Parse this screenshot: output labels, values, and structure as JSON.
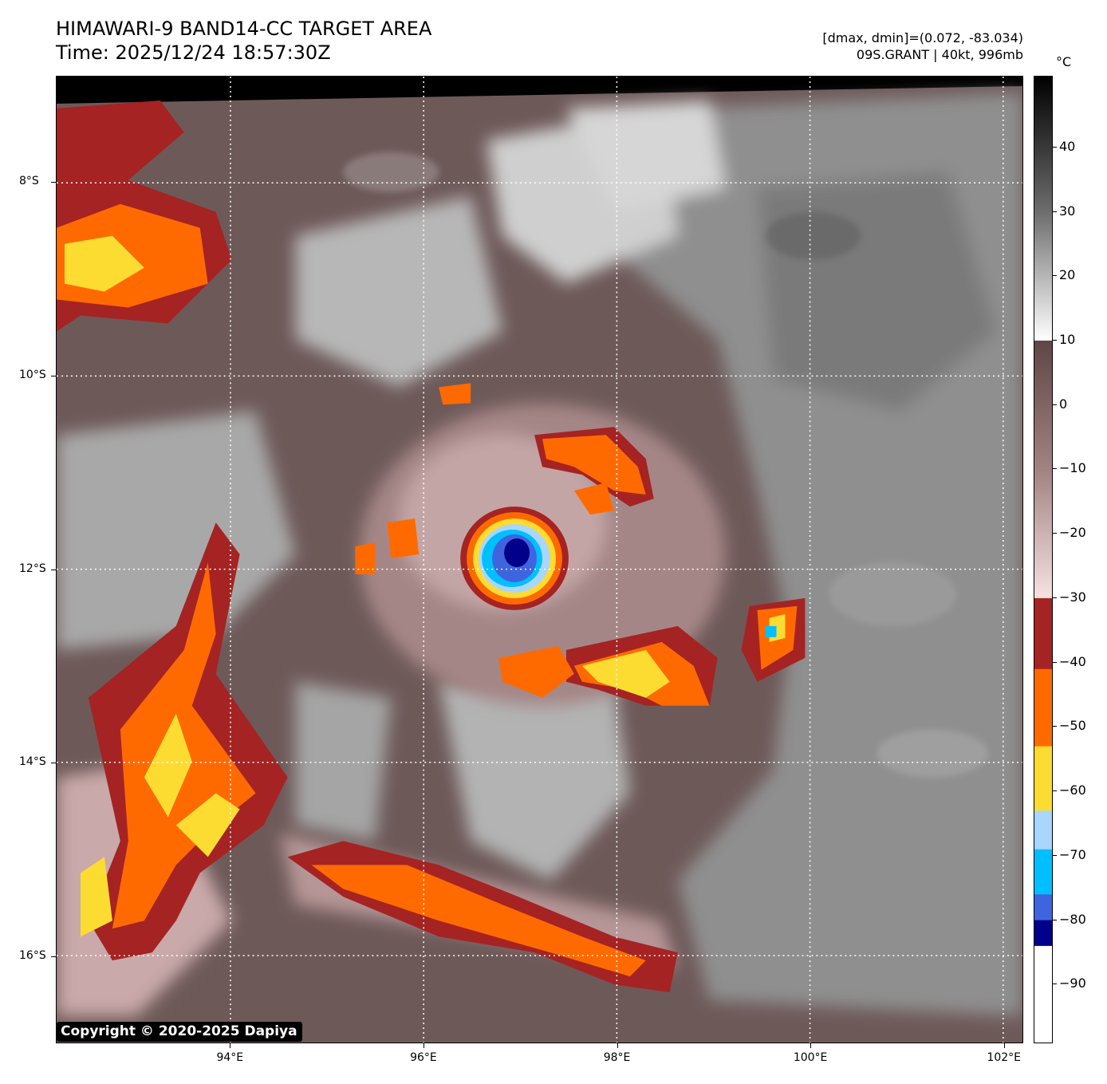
{
  "header": {
    "title_line1": "HIMAWARI-9 BAND14-CC TARGET AREA",
    "title_line2": "Time: 2025/12/24 18:57:30Z",
    "stats_line": "[dmax, dmin]=(0.072, -83.034)",
    "storm_line": "09S.GRANT | 40kt, 996mb"
  },
  "map": {
    "lat_labels": [
      "8°S",
      "10°S",
      "12°S",
      "14°S",
      "16°S"
    ],
    "lon_labels": [
      "94°E",
      "96°E",
      "98°E",
      "100°E",
      "102°E"
    ],
    "lat_values": [
      -8,
      -10,
      -12,
      -14,
      -16
    ],
    "lon_values": [
      94,
      96,
      98,
      100,
      102
    ],
    "lat_range": [
      -16.9,
      -6.9
    ],
    "lon_range": [
      92.2,
      102.2
    ],
    "gridlines": true,
    "gridline_style": "dotted white"
  },
  "colorbar": {
    "unit": "°C",
    "tick_labels": [
      "40",
      "30",
      "20",
      "10",
      "0",
      "−10",
      "−20",
      "−30",
      "−40",
      "−50",
      "−60",
      "−70",
      "−80",
      "−90"
    ],
    "tick_values": [
      40,
      30,
      20,
      10,
      0,
      -10,
      -20,
      -30,
      -40,
      -50,
      -60,
      -70,
      -80,
      -90
    ],
    "range": [
      -99,
      51
    ],
    "segments": [
      {
        "from": 51,
        "to": 10,
        "style": "gray-gradient"
      },
      {
        "from": 10,
        "to": -30,
        "style": "brown-pink-gradient"
      },
      {
        "from": -30,
        "to": -41,
        "color": "#a52323"
      },
      {
        "from": -41,
        "to": -53,
        "color": "#ff6a00"
      },
      {
        "from": -53,
        "to": -63,
        "color": "#fddc32"
      },
      {
        "from": -63,
        "to": -69,
        "color": "#a9d6fd"
      },
      {
        "from": -69,
        "to": -76,
        "color": "#00bfff"
      },
      {
        "from": -76,
        "to": -80,
        "color": "#3f64e0"
      },
      {
        "from": -80,
        "to": -84,
        "color": "#00008b"
      },
      {
        "from": -84,
        "to": -99,
        "color": "#ffffff"
      }
    ]
  },
  "colors": {
    "background_cloud": "#6e5959",
    "warm_gray": "#8a8a8a",
    "light_cloud": "#cfcfcf",
    "red": "#a52323",
    "orange": "#ff6a00",
    "yellow": "#fddc32",
    "light_blue": "#a9d6fd",
    "cyan": "#00bfff",
    "blue": "#3f64e0",
    "navy": "#00008b"
  },
  "footer": {
    "copyright": "Copyright © 2020-2025 Dapiya"
  }
}
